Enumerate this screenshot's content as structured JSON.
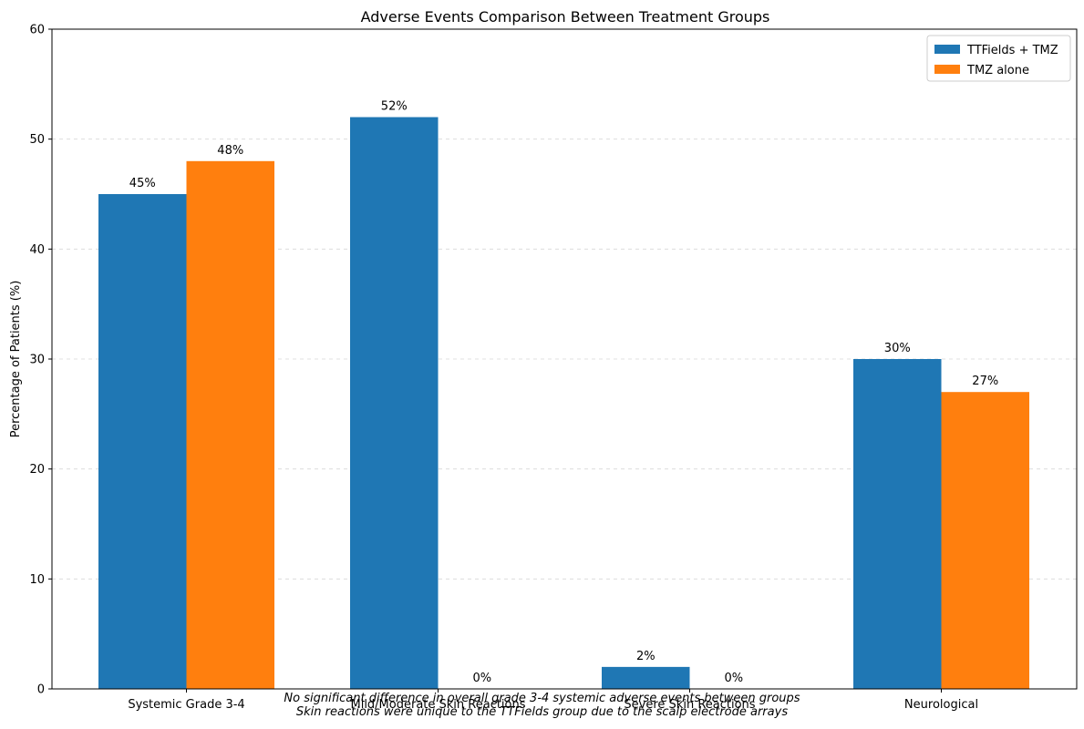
{
  "chart_data": {
    "type": "bar",
    "title": "Adverse Events Comparison Between Treatment Groups",
    "xlabel": "",
    "ylabel": "Percentage of Patients (%)",
    "ylim": [
      0,
      60
    ],
    "yticks": [
      0,
      10,
      20,
      30,
      40,
      50,
      60
    ],
    "grid": "horizontal dashed",
    "legend_position": "top-right",
    "categories": [
      "Systemic Grade 3-4",
      "Mild/Moderate Skin Reactions",
      "Severe Skin Reactions",
      "Neurological"
    ],
    "series": [
      {
        "name": "TTFields + TMZ",
        "color": "#1f77b4",
        "values": [
          45,
          52,
          2,
          30
        ]
      },
      {
        "name": "TMZ alone",
        "color": "#ff7f0e",
        "values": [
          48,
          0,
          0,
          27
        ]
      }
    ],
    "value_label_suffix": "%"
  },
  "annotations": {
    "line1": "No significant difference in overall grade 3-4 systemic adverse events between groups",
    "line2": "Skin reactions were unique to the TTFields group due to the scalp electrode arrays"
  }
}
